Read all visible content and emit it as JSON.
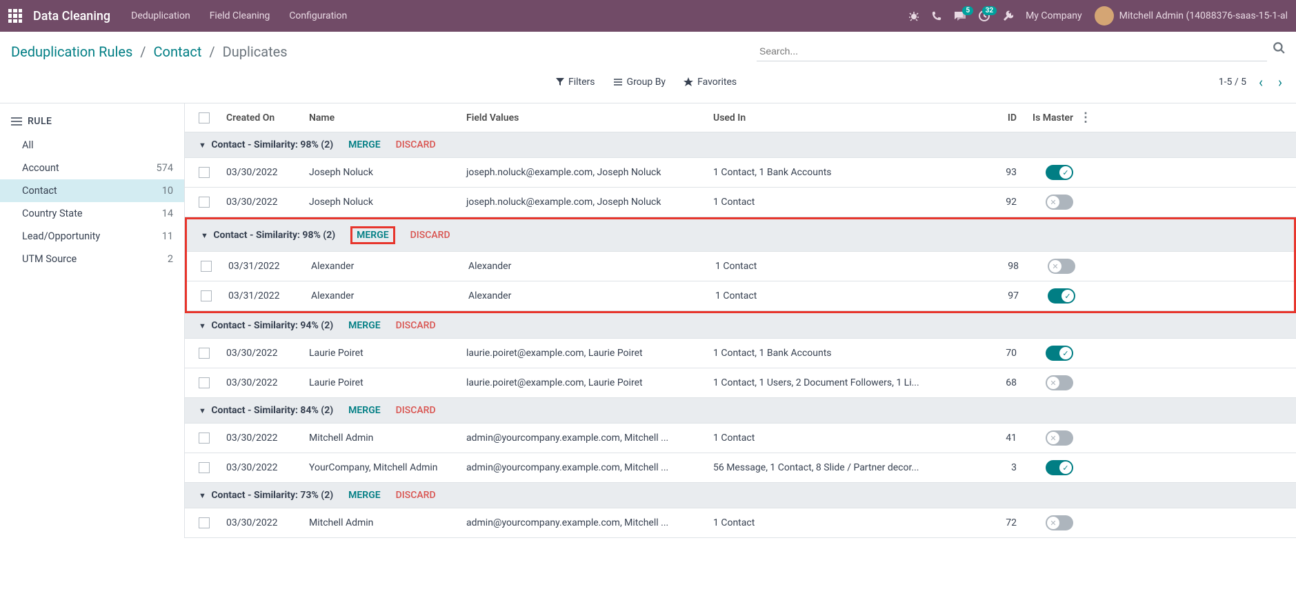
{
  "topbar": {
    "app_name": "Data Cleaning",
    "nav": [
      "Deduplication",
      "Field Cleaning",
      "Configuration"
    ],
    "chat_badge": "5",
    "activity_badge": "32",
    "company": "My Company",
    "user": "Mitchell Admin (14088376-saas-15-1-al"
  },
  "breadcrumb": {
    "items": [
      "Deduplication Rules",
      "Contact"
    ],
    "current": "Duplicates"
  },
  "search": {
    "placeholder": "Search..."
  },
  "controls": {
    "filters": "Filters",
    "groupby": "Group By",
    "favorites": "Favorites",
    "pager": "1-5 / 5"
  },
  "sidebar": {
    "header": "RULE",
    "items": [
      {
        "label": "All",
        "count": ""
      },
      {
        "label": "Account",
        "count": "574"
      },
      {
        "label": "Contact",
        "count": "10",
        "active": true
      },
      {
        "label": "Country State",
        "count": "14"
      },
      {
        "label": "Lead/Opportunity",
        "count": "11"
      },
      {
        "label": "UTM Source",
        "count": "2"
      }
    ]
  },
  "table": {
    "columns": {
      "created": "Created On",
      "name": "Name",
      "field": "Field Values",
      "used": "Used In",
      "id": "ID",
      "master": "Is Master"
    },
    "merge_label": "MERGE",
    "discard_label": "DISCARD",
    "groups": [
      {
        "title": "Contact - Similarity: 98% (2)",
        "rows": [
          {
            "date": "03/30/2022",
            "name": "Joseph Noluck",
            "field": "joseph.noluck@example.com, Joseph Noluck",
            "used": "1 Contact, 1 Bank Accounts",
            "id": "93",
            "master": true
          },
          {
            "date": "03/30/2022",
            "name": "Joseph Noluck",
            "field": "joseph.noluck@example.com, Joseph Noluck",
            "used": "1 Contact",
            "id": "92",
            "master": false
          }
        ]
      },
      {
        "title": "Contact - Similarity: 98% (2)",
        "highlighted": true,
        "rows": [
          {
            "date": "03/31/2022",
            "name": "Alexander",
            "field": "Alexander",
            "used": "1 Contact",
            "id": "98",
            "master": false
          },
          {
            "date": "03/31/2022",
            "name": "Alexander",
            "field": "Alexander",
            "used": "1 Contact",
            "id": "97",
            "master": true
          }
        ]
      },
      {
        "title": "Contact - Similarity: 94% (2)",
        "rows": [
          {
            "date": "03/30/2022",
            "name": "Laurie Poiret",
            "field": "laurie.poiret@example.com, Laurie Poiret",
            "used": "1 Contact, 1 Bank Accounts",
            "id": "70",
            "master": true
          },
          {
            "date": "03/30/2022",
            "name": "Laurie Poiret",
            "field": "laurie.poiret@example.com, Laurie Poiret",
            "used": "1 Contact, 1 Users, 2 Document Followers, 1 Li...",
            "id": "68",
            "master": false
          }
        ]
      },
      {
        "title": "Contact - Similarity: 84% (2)",
        "rows": [
          {
            "date": "03/30/2022",
            "name": "Mitchell Admin",
            "field": "admin@yourcompany.example.com, Mitchell ...",
            "used": "1 Contact",
            "id": "41",
            "master": false
          },
          {
            "date": "03/30/2022",
            "name": "YourCompany, Mitchell Admin",
            "field": "admin@yourcompany.example.com, Mitchell ...",
            "used": "56 Message, 1 Contact, 8 Slide / Partner decor...",
            "id": "3",
            "master": true
          }
        ]
      },
      {
        "title": "Contact - Similarity: 73% (2)",
        "rows": [
          {
            "date": "03/30/2022",
            "name": "Mitchell Admin",
            "field": "admin@yourcompany.example.com, Mitchell ...",
            "used": "1 Contact",
            "id": "72",
            "master": false
          }
        ]
      }
    ]
  }
}
